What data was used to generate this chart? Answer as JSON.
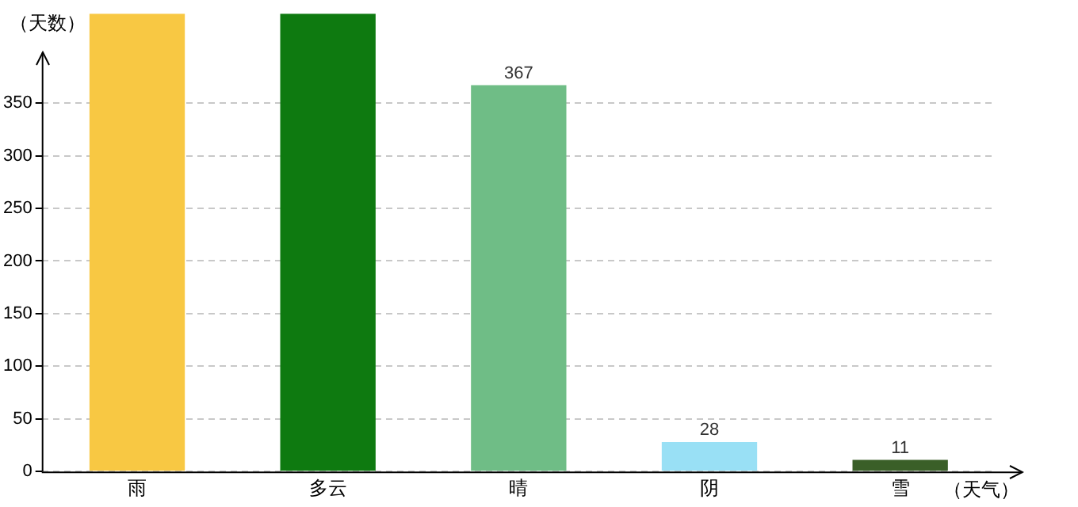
{
  "chart_data": {
    "type": "bar",
    "xlabel": "（天气）",
    "ylabel": "（天数）",
    "categories": [
      "雨",
      "多云",
      "晴",
      "阴",
      "雪"
    ],
    "values": [
      435,
      435,
      367,
      28,
      11
    ],
    "colors": [
      "#f8c843",
      "#0e7a10",
      "#6fbd86",
      "#99e0f5",
      "#3a5f28"
    ],
    "value_labels": [
      null,
      null,
      "367",
      "28",
      "11"
    ],
    "ylim": [
      0,
      435
    ],
    "yticks": [
      0,
      50,
      100,
      150,
      200,
      250,
      300,
      350
    ],
    "grid": "y",
    "legend": false
  }
}
